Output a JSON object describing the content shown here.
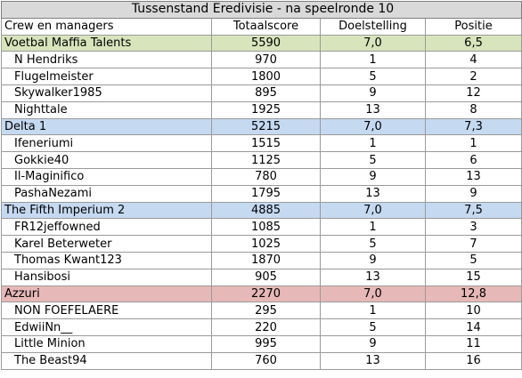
{
  "title": "Tussenstand Eredivisie - na speelronde 10",
  "headers": [
    "Crew en managers",
    "Totaalscore",
    "Doelstelling",
    "Positie"
  ],
  "teams": [
    {
      "name": "Voetbal Maffia Talents",
      "score": "5590",
      "target": "7,0",
      "position": "6,5",
      "color": "#d8e4bc",
      "members": [
        {
          "name": "N Hendriks",
          "score": "970",
          "target": "1",
          "position": "4"
        },
        {
          "name": "Flugelmeister",
          "score": "1800",
          "target": "5",
          "position": "2"
        },
        {
          "name": "Skywalker1985",
          "score": "895",
          "target": "9",
          "position": "12"
        },
        {
          "name": "Nighttale",
          "score": "1925",
          "target": "13",
          "position": "8"
        }
      ]
    },
    {
      "name": "Delta 1",
      "score": "5215",
      "target": "7,0",
      "position": "7,3",
      "color": "#c5d9f1",
      "members": [
        {
          "name": "Ifeneriumi",
          "score": "1515",
          "target": "1",
          "position": "1"
        },
        {
          "name": "Gokkie40",
          "score": "1125",
          "target": "5",
          "position": "6"
        },
        {
          "name": "Il-Maginifico",
          "score": "780",
          "target": "9",
          "position": "13"
        },
        {
          "name": "PashaNezami",
          "score": "1795",
          "target": "13",
          "position": "9"
        }
      ]
    },
    {
      "name": "The Fifth Imperium 2",
      "score": "4885",
      "target": "7,0",
      "position": "7,5",
      "color": "#c5d9f1",
      "members": [
        {
          "name": "FR12jeffowned",
          "score": "1085",
          "target": "1",
          "position": "3"
        },
        {
          "name": "Karel Beterweter",
          "score": "1025",
          "target": "5",
          "position": "7"
        },
        {
          "name": "Thomas Kwant123",
          "score": "1870",
          "target": "9",
          "position": "5"
        },
        {
          "name": "Hansibosi",
          "score": "905",
          "target": "13",
          "position": "15"
        }
      ]
    },
    {
      "name": "Azzuri",
      "score": "2270",
      "target": "7,0",
      "position": "12,8",
      "color": "#e6b8b7",
      "members": [
        {
          "name": "NON FOEFELAERE",
          "score": "295",
          "target": "1",
          "position": "10"
        },
        {
          "name": "EdwiiNn__",
          "score": "220",
          "target": "5",
          "position": "14"
        },
        {
          "name": "Little Minion",
          "score": "995",
          "target": "9",
          "position": "11"
        },
        {
          "name": "The Beast94",
          "score": "760",
          "target": "13",
          "position": "16"
        }
      ]
    }
  ]
}
